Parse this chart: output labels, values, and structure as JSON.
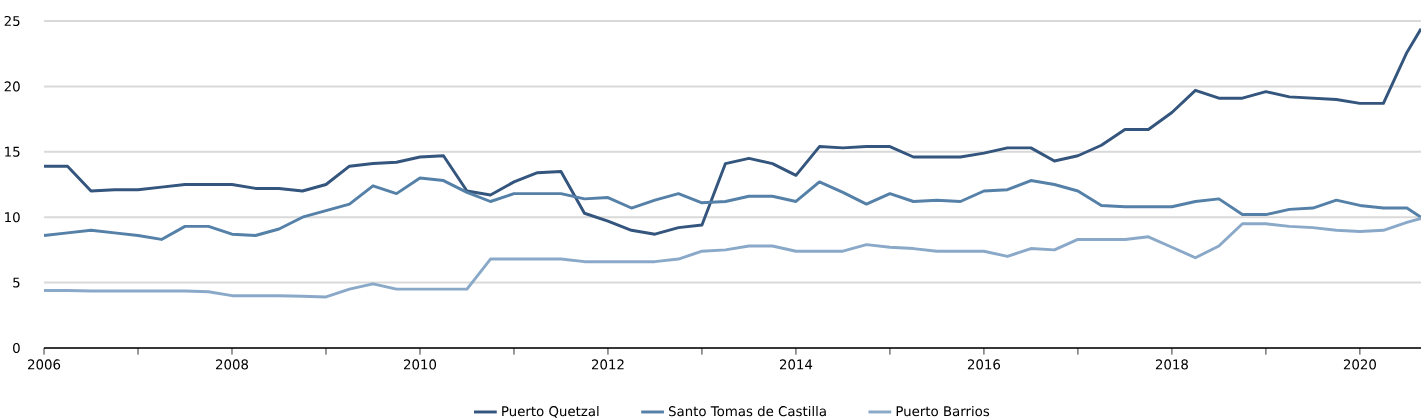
{
  "chart_data": {
    "type": "line",
    "x": [
      2006,
      2006.25,
      2006.5,
      2006.75,
      2007,
      2007.25,
      2007.5,
      2007.75,
      2008,
      2008.25,
      2008.5,
      2008.75,
      2009,
      2009.25,
      2009.5,
      2009.75,
      2010,
      2010.25,
      2010.5,
      2010.75,
      2011,
      2011.25,
      2011.5,
      2011.75,
      2012,
      2012.25,
      2012.5,
      2012.75,
      2013,
      2013.25,
      2013.5,
      2013.75,
      2014,
      2014.25,
      2014.5,
      2014.75,
      2015,
      2015.25,
      2015.5,
      2015.75,
      2016,
      2016.25,
      2016.5,
      2016.75,
      2017,
      2017.25,
      2017.5,
      2017.75,
      2018,
      2018.25,
      2018.5,
      2018.75,
      2019,
      2019.25,
      2019.5,
      2019.75,
      2020,
      2020.25,
      2020.5,
      2020.65
    ],
    "series": [
      {
        "name": "Puerto Quetzal",
        "color": "#34557d",
        "values": [
          13.9,
          13.9,
          12.0,
          12.1,
          12.1,
          12.3,
          12.5,
          12.5,
          12.5,
          12.2,
          12.2,
          12.0,
          12.5,
          13.9,
          14.1,
          14.2,
          14.6,
          14.7,
          12.0,
          11.7,
          12.7,
          13.4,
          13.5,
          10.3,
          9.7,
          9.0,
          8.7,
          9.2,
          9.4,
          14.1,
          14.5,
          14.1,
          13.2,
          15.4,
          15.3,
          15.4,
          15.4,
          14.6,
          14.6,
          14.6,
          14.9,
          15.3,
          15.3,
          14.3,
          14.7,
          15.5,
          16.7,
          16.7,
          18.0,
          19.7,
          19.1,
          19.1,
          19.6,
          19.2,
          19.1,
          19.0,
          18.7,
          18.7,
          22.6,
          24.4
        ]
      },
      {
        "name": "Santo Tomas de Castilla",
        "color": "#5580a8",
        "values": [
          8.6,
          8.8,
          9.0,
          8.8,
          8.6,
          8.3,
          9.3,
          9.3,
          8.7,
          8.6,
          9.1,
          10.0,
          10.5,
          11.0,
          12.4,
          11.8,
          13.0,
          12.8,
          11.9,
          11.2,
          11.8,
          11.8,
          11.8,
          11.4,
          11.5,
          10.7,
          11.3,
          11.8,
          11.1,
          11.2,
          11.6,
          11.6,
          11.2,
          12.7,
          11.9,
          11.0,
          11.8,
          11.2,
          11.3,
          11.2,
          12.0,
          12.1,
          12.8,
          12.5,
          12.0,
          10.9,
          10.8,
          10.8,
          10.8,
          11.2,
          11.4,
          10.2,
          10.2,
          10.6,
          10.7,
          11.3,
          10.9,
          10.7,
          10.7,
          10.0
        ]
      },
      {
        "name": "Puerto Barrios",
        "color": "#8aa9c9",
        "values": [
          4.4,
          4.4,
          4.35,
          4.35,
          4.35,
          4.35,
          4.35,
          4.3,
          4.0,
          4.0,
          4.0,
          3.95,
          3.9,
          4.5,
          4.9,
          4.5,
          4.5,
          4.5,
          4.5,
          6.8,
          6.8,
          6.8,
          6.8,
          6.6,
          6.6,
          6.6,
          6.6,
          6.8,
          7.4,
          7.5,
          7.8,
          7.8,
          7.4,
          7.4,
          7.4,
          7.9,
          7.7,
          7.6,
          7.4,
          7.4,
          7.4,
          7.0,
          7.6,
          7.5,
          8.3,
          8.3,
          8.3,
          8.5,
          7.7,
          6.9,
          7.8,
          9.5,
          9.5,
          9.3,
          9.2,
          9.0,
          8.9,
          9.0,
          9.6,
          9.9
        ]
      }
    ],
    "xlim": [
      2006,
      2020.65
    ],
    "ylim": [
      0,
      25
    ],
    "xticks": [
      {
        "value": 2006,
        "label": "2006"
      },
      {
        "value": 2007,
        "label": null
      },
      {
        "value": 2008,
        "label": "2008"
      },
      {
        "value": 2009,
        "label": null
      },
      {
        "value": 2010,
        "label": "2010"
      },
      {
        "value": 2011,
        "label": null
      },
      {
        "value": 2012,
        "label": "2012"
      },
      {
        "value": 2013,
        "label": null
      },
      {
        "value": 2014,
        "label": "2014"
      },
      {
        "value": 2015,
        "label": null
      },
      {
        "value": 2016,
        "label": "2016"
      },
      {
        "value": 2017,
        "label": null
      },
      {
        "value": 2018,
        "label": "2018"
      },
      {
        "value": 2019,
        "label": null
      },
      {
        "value": 2020,
        "label": "2020"
      }
    ],
    "yticks": [
      0,
      5,
      10,
      15,
      20,
      25
    ],
    "grid": "y",
    "legend": "bottom",
    "marker": "none",
    "line_style": "solid"
  }
}
